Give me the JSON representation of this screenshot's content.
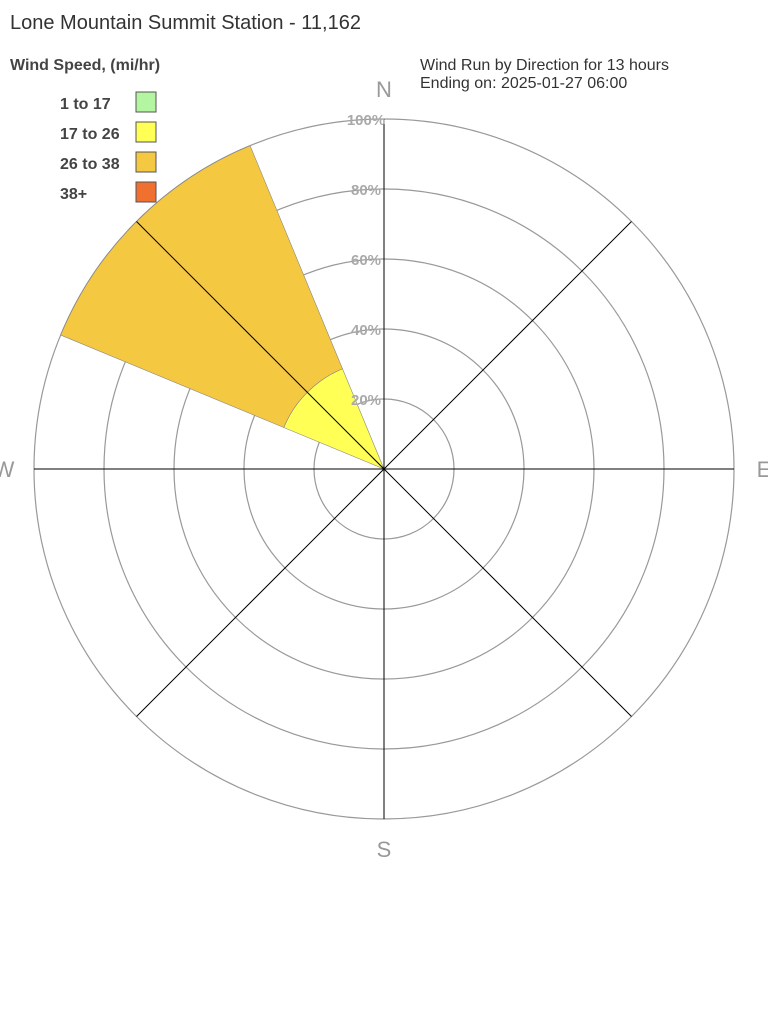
{
  "chart_data": {
    "type": "windrose",
    "title": "Lone Mountain Summit Station - 11,162",
    "legend_title": "Wind Speed, (mi/hr)",
    "subtitle": [
      "Wind Run by Direction for 13 hours",
      "Ending on: 2025-01-27 06:00"
    ],
    "categories": [
      "N",
      null,
      "E",
      null,
      "S",
      null,
      "W",
      null
    ],
    "series": [
      {
        "name": "1 to 17",
        "color": "#b3f5a0",
        "values": [
          0,
          0,
          0,
          0,
          0,
          0,
          0,
          0
        ]
      },
      {
        "name": "17 to 26",
        "color": "#ffff55",
        "values": [
          0,
          0,
          0,
          0,
          0,
          0,
          0,
          31
        ]
      },
      {
        "name": "26 to 38",
        "color": "#f5c842",
        "values": [
          0,
          0,
          0,
          0,
          0,
          0,
          0,
          69
        ]
      },
      {
        "name": "38+",
        "color": "#f07030",
        "values": [
          0,
          0,
          0,
          0,
          0,
          0,
          0,
          0
        ]
      }
    ],
    "rlim": [
      0,
      100
    ],
    "rticks": [
      {
        "value": 20,
        "label": "20%"
      },
      {
        "value": 40,
        "label": "40%"
      },
      {
        "value": 60,
        "label": "60%"
      },
      {
        "value": 80,
        "label": "80%"
      },
      {
        "value": 100,
        "label": "100%"
      }
    ]
  }
}
